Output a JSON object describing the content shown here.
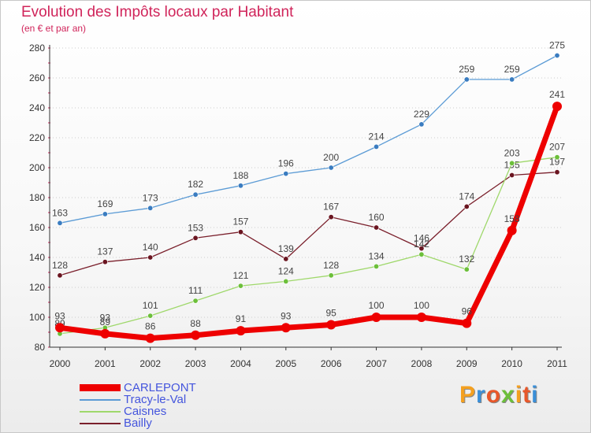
{
  "header": {
    "title": "Evolution des Impôts locaux par Habitant",
    "subtitle": "(en € et par an)"
  },
  "brand": {
    "text": "Proxiti",
    "colors": [
      "#f4a020",
      "#3a8fd8",
      "#e8572a",
      "#6cbf3a",
      "#f4a020",
      "#e8572a",
      "#3a8fd8"
    ]
  },
  "colors": {
    "title": "#d0245a",
    "axis": "#333333",
    "grid": "#cccccc",
    "legend_text": "#4455dd"
  },
  "chart_data": {
    "type": "line",
    "title": "Evolution des Impôts locaux par Habitant",
    "ylabel": "(en € et par an)",
    "xlabel": "",
    "categories": [
      "2000",
      "2001",
      "2002",
      "2003",
      "2004",
      "2005",
      "2006",
      "2007",
      "2008",
      "2009",
      "2010",
      "2011"
    ],
    "ylim": [
      80,
      280
    ],
    "yticks": [
      80,
      100,
      120,
      140,
      160,
      180,
      200,
      220,
      240,
      260,
      280
    ],
    "grid": "horizontal",
    "legend_position": "bottom-left",
    "series": [
      {
        "name": "Tracy-le-Val",
        "color": "#5b9bd5",
        "point_color": "#3a7cc0",
        "values": [
          163,
          169,
          173,
          182,
          188,
          196,
          200,
          214,
          229,
          259,
          259,
          275
        ],
        "label_text": [
          "163",
          "169",
          "173",
          "182",
          "188",
          "196",
          "200",
          "214",
          "229",
          "259",
          "259",
          "275"
        ]
      },
      {
        "name": "Bailly",
        "color": "#7a1f2b",
        "point_color": "#6a1520",
        "values": [
          128,
          137,
          140,
          153,
          157,
          139,
          167,
          160,
          146,
          174,
          195,
          197
        ],
        "label_text": [
          "128",
          "137",
          "140",
          "153",
          "157",
          "139",
          "167",
          "160",
          "146",
          "174",
          "195",
          "197"
        ]
      },
      {
        "name": "Caisnes",
        "color": "#9fd86b",
        "point_color": "#6cbf3a",
        "values": [
          89,
          93,
          101,
          111,
          121,
          124,
          128,
          134,
          142,
          132,
          203,
          207
        ],
        "label_text": [
          "89",
          "93",
          "101",
          "111",
          "121",
          "124",
          "128",
          "134",
          "142",
          "132",
          "203",
          "207"
        ]
      },
      {
        "name": "CARLEPONT",
        "color": "#ee0000",
        "point_color": "#ee0000",
        "values": [
          93,
          89,
          86,
          88,
          91,
          93,
          95,
          100,
          100,
          96,
          158,
          241
        ],
        "label_text": [
          "93",
          "89",
          "86",
          "88",
          "91",
          "93",
          "95",
          "100",
          "100",
          "96",
          "158",
          "241"
        ]
      }
    ],
    "legend": [
      {
        "name": "CARLEPONT",
        "color": "#ee0000"
      },
      {
        "name": "Tracy-le-Val",
        "color": "#5b9bd5"
      },
      {
        "name": "Caisnes",
        "color": "#9fd86b"
      },
      {
        "name": "Bailly",
        "color": "#7a1f2b"
      }
    ]
  }
}
